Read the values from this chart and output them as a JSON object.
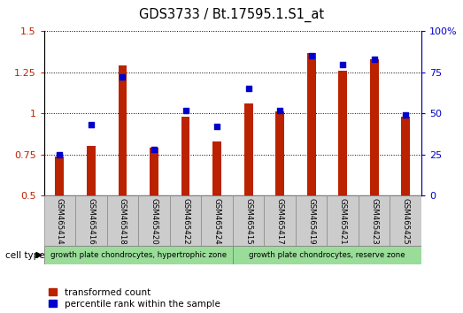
{
  "title": "GDS3733 / Bt.17595.1.S1_at",
  "samples": [
    "GSM465414",
    "GSM465416",
    "GSM465418",
    "GSM465420",
    "GSM465422",
    "GSM465424",
    "GSM465415",
    "GSM465417",
    "GSM465419",
    "GSM465421",
    "GSM465423",
    "GSM465425"
  ],
  "red_values": [
    0.74,
    0.8,
    1.29,
    0.79,
    0.98,
    0.83,
    1.06,
    1.01,
    1.37,
    1.26,
    1.33,
    0.98
  ],
  "blue_values": [
    25,
    43,
    72,
    28,
    52,
    42,
    65,
    52,
    85,
    80,
    83,
    49
  ],
  "ylim_left": [
    0.5,
    1.5
  ],
  "ylim_right": [
    0,
    100
  ],
  "yticks_left": [
    0.5,
    0.75,
    1.0,
    1.25,
    1.5
  ],
  "yticks_right": [
    0,
    25,
    50,
    75,
    100
  ],
  "ytick_labels_left": [
    "0.5",
    "0.75",
    "1",
    "1.25",
    "1.5"
  ],
  "ytick_labels_right": [
    "0",
    "25",
    "50",
    "75",
    "100%"
  ],
  "group1_label": "growth plate chondrocytes, hypertrophic zone",
  "group2_label": "growth plate chondrocytes, reserve zone",
  "group1_count": 6,
  "group2_count": 6,
  "cell_type_label": "cell type",
  "legend1": "transformed count",
  "legend2": "percentile rank within the sample",
  "bar_color_red": "#bb2200",
  "bar_color_blue": "#0000cc",
  "group_bg_color": "#99dd99",
  "sample_bg_color": "#cccccc",
  "bar_width": 0.28,
  "title_fontsize": 10.5,
  "ybaseline": 0.5
}
